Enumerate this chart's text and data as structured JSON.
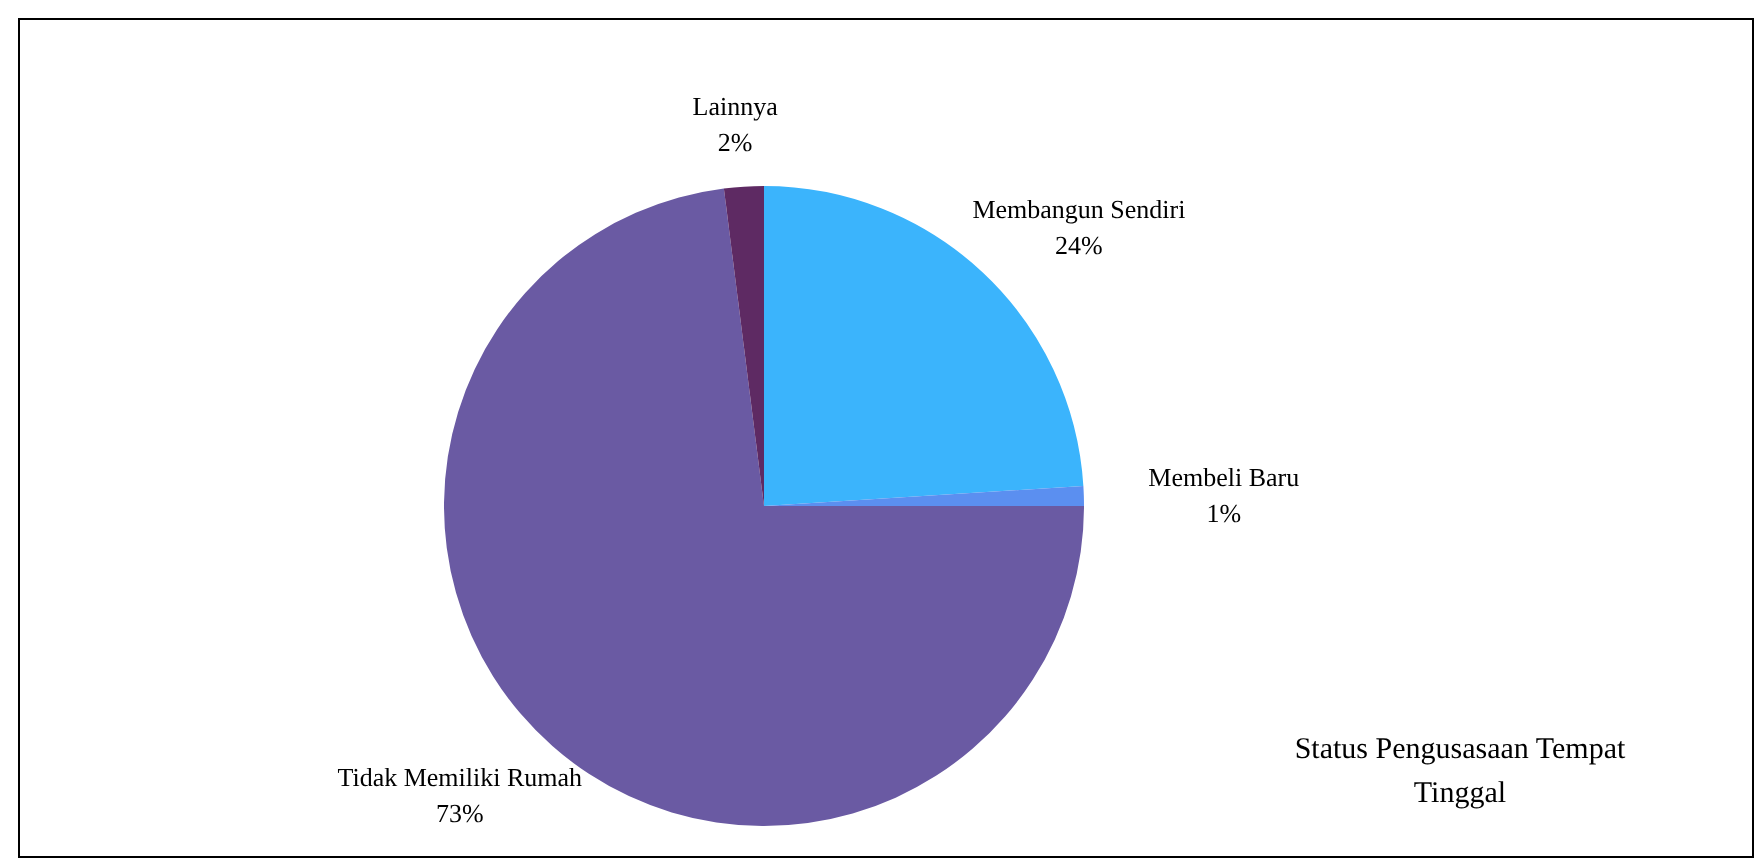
{
  "chart_data": {
    "type": "pie",
    "title": "Status Pengusasaan Tempat Tinggal",
    "categories": [
      "Membangun Sendiri",
      "Membeli Baru",
      "Tidak Memiliki Rumah",
      "Lainnya"
    ],
    "values": [
      24,
      1,
      73,
      2
    ],
    "value_labels": [
      "24%",
      "1%",
      "73%",
      "2%"
    ],
    "colors": [
      "#3bb4fc",
      "#5b8ff0",
      "#6a5aa3",
      "#5e2a63"
    ],
    "legend": false
  }
}
